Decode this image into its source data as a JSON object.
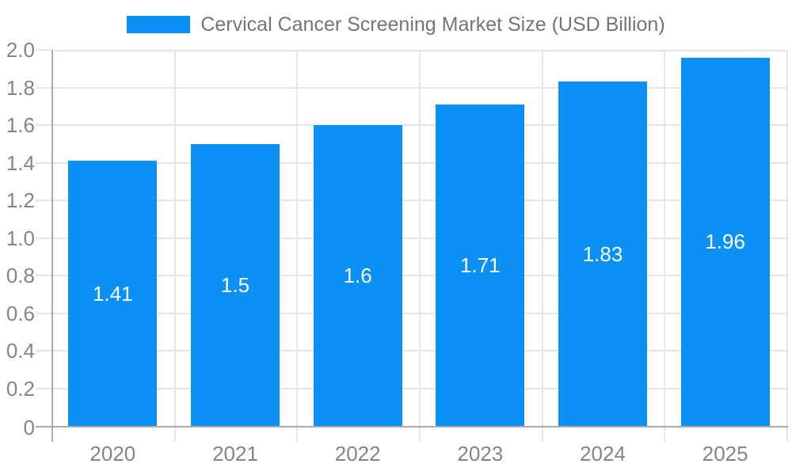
{
  "legend": {
    "label": "Cervical Cancer Screening Market Size (USD Billion)"
  },
  "colors": {
    "bar": "#0b90f6",
    "grid": "#e6e6e6",
    "axis": "#ababab",
    "tick_text": "#858585",
    "legend_text": "#757575",
    "value_text": "#ffffff",
    "background": "#ffffff"
  },
  "chart_data": {
    "type": "bar",
    "title": "Cervical Cancer Screening Market Size (USD Billion)",
    "series_name": "Cervical Cancer Screening Market Size (USD Billion)",
    "categories": [
      "2020",
      "2021",
      "2022",
      "2023",
      "2024",
      "2025"
    ],
    "values": [
      1.41,
      1.5,
      1.6,
      1.71,
      1.83,
      1.96
    ],
    "value_labels": [
      "1.41",
      "1.5",
      "1.6",
      "1.71",
      "1.83",
      "1.96"
    ],
    "xlabel": "",
    "ylabel": "",
    "ylim": [
      0,
      2.0
    ],
    "ytick_step": 0.2,
    "ytick_labels": [
      "0",
      "0.2",
      "0.4",
      "0.6",
      "0.8",
      "1.0",
      "1.2",
      "1.4",
      "1.6",
      "1.8",
      "2.0"
    ],
    "grid": true,
    "legend_position": "top",
    "bar_color": "#0b90f6",
    "value_label_position": "center"
  }
}
